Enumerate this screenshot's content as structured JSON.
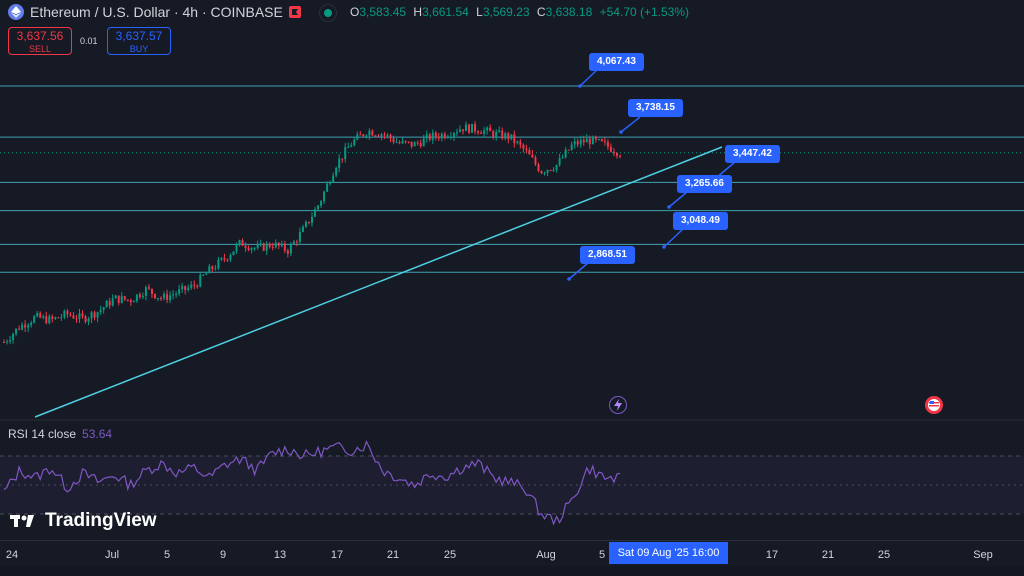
{
  "header": {
    "symbol_title": "Ethereum / U.S. Dollar · 4h · COINBASE",
    "ohlc": {
      "o_label": "O",
      "o_value": "3,583.45",
      "h_label": "H",
      "h_value": "3,661.54",
      "l_label": "L",
      "l_value": "3,569.23",
      "c_label": "C",
      "c_value": "3,638.18",
      "change": "+54.70 (+1.53%)"
    }
  },
  "trade": {
    "sell_price": "3,637.56",
    "sell_label": "SELL",
    "spread": "0.01",
    "buy_price": "3,637.57",
    "buy_label": "BUY"
  },
  "price_labels": [
    "4,067.43",
    "3,738.15",
    "3,447.42",
    "3,265.66",
    "3,048.49",
    "2,868.51"
  ],
  "rsi": {
    "label": "RSI 14 close",
    "value": "53.64"
  },
  "brand": {
    "name": "TradingView"
  },
  "xaxis": {
    "ticks": [
      "24",
      "Jul",
      "5",
      "9",
      "13",
      "17",
      "21",
      "25",
      "Aug",
      "5",
      "17",
      "21",
      "25",
      "Sep"
    ],
    "cursor_label": "Sat 09 Aug '25   16:00"
  },
  "colors": {
    "up": "#089981",
    "down": "#f23645",
    "accent": "#2962ff",
    "level_line": "#4dd0e1",
    "rsi": "#7e57c2"
  },
  "icons": [
    "ethereum-icon",
    "flag-icon",
    "live-icon",
    "lightning-icon",
    "us-flag-icon",
    "tradingview-logo-icon"
  ],
  "chart_data": {
    "type": "candlestick",
    "price_levels": [
      4067.43,
      3738.15,
      3447.42,
      3265.66,
      3048.49,
      2868.51
    ],
    "close_path": [
      2420,
      2520,
      2580,
      2560,
      2600,
      2570,
      2620,
      2700,
      2690,
      2760,
      2700,
      2740,
      2780,
      2880,
      2960,
      3060,
      3020,
      3050,
      3010,
      3150,
      3320,
      3560,
      3700,
      3780,
      3760,
      3700,
      3690,
      3740,
      3760,
      3800,
      3790,
      3760,
      3740,
      3650,
      3520,
      3560,
      3690,
      3720,
      3690,
      3638
    ],
    "rsi_path": [
      45,
      60,
      55,
      62,
      48,
      58,
      52,
      57,
      50,
      60,
      65,
      58,
      62,
      55,
      64,
      68,
      60,
      72,
      75,
      70,
      73,
      76,
      74,
      78,
      60,
      55,
      50,
      58,
      56,
      62,
      65,
      55,
      52,
      48,
      30,
      25,
      40,
      62,
      55,
      54
    ]
  }
}
